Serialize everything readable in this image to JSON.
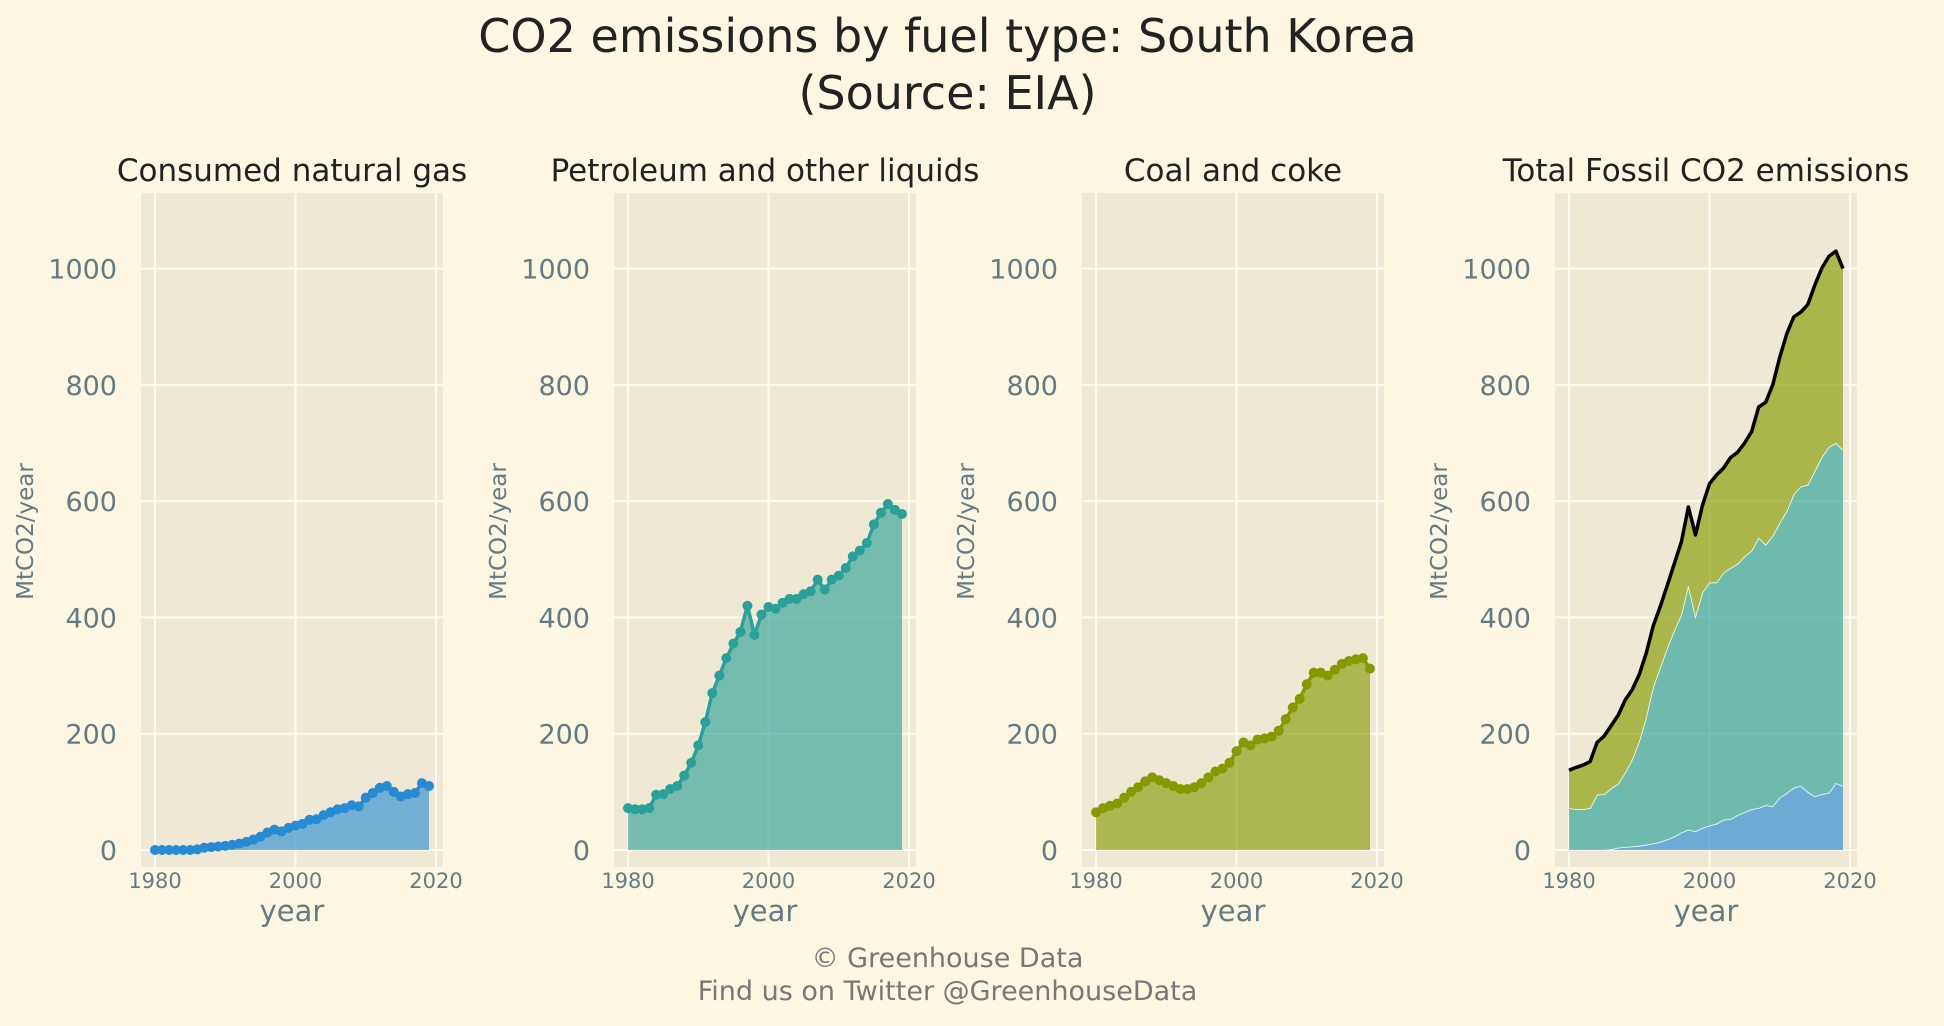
{
  "title_lines": [
    "CO2 emissions by fuel type: South Korea",
    "(Source: EIA)"
  ],
  "footer_lines": [
    "© Greenhouse Data",
    "Find us on Twitter @GreenhouseData"
  ],
  "colors": {
    "background": "#fdf6e3",
    "panel": "#eee8d5",
    "grid": "#fdfaf2",
    "gas": "#268bd2",
    "petroleum": "#2aa198",
    "coal": "#859900",
    "total": "#000000"
  },
  "chart_data": [
    {
      "type": "area",
      "title": "Consumed natural gas",
      "xlabel": "year",
      "ylabel": "MtCO2/year",
      "x_ticks": [
        1980,
        2000,
        2020
      ],
      "y_ticks": [
        0,
        200,
        400,
        600,
        800,
        1000
      ],
      "xlim": [
        1978,
        2021
      ],
      "ylim": [
        0,
        1130
      ],
      "markers": true,
      "series": [
        {
          "key": "gas",
          "x": [
            1980,
            1981,
            1982,
            1983,
            1984,
            1985,
            1986,
            1987,
            1988,
            1989,
            1990,
            1991,
            1992,
            1993,
            1994,
            1995,
            1996,
            1997,
            1998,
            1999,
            2000,
            2001,
            2002,
            2003,
            2004,
            2005,
            2006,
            2007,
            2008,
            2009,
            2010,
            2011,
            2012,
            2013,
            2014,
            2015,
            2016,
            2017,
            2018,
            2019
          ],
          "values": [
            0,
            0,
            0,
            0,
            0,
            0,
            1,
            4,
            5,
            6,
            7,
            9,
            11,
            14,
            18,
            23,
            30,
            35,
            32,
            38,
            42,
            45,
            52,
            53,
            60,
            65,
            70,
            72,
            77,
            75,
            90,
            98,
            107,
            110,
            100,
            92,
            96,
            98,
            115,
            110
          ]
        }
      ]
    },
    {
      "type": "area",
      "title": "Petroleum and other liquids",
      "xlabel": "year",
      "ylabel": "MtCO2/year",
      "x_ticks": [
        1980,
        2000,
        2020
      ],
      "y_ticks": [
        0,
        200,
        400,
        600,
        800,
        1000
      ],
      "xlim": [
        1978,
        2021
      ],
      "ylim": [
        0,
        1130
      ],
      "markers": true,
      "series": [
        {
          "key": "petroleum",
          "x": [
            1980,
            1981,
            1982,
            1983,
            1984,
            1985,
            1986,
            1987,
            1988,
            1989,
            1990,
            1991,
            1992,
            1993,
            1994,
            1995,
            1996,
            1997,
            1998,
            1999,
            2000,
            2001,
            2002,
            2003,
            2004,
            2005,
            2006,
            2007,
            2008,
            2009,
            2010,
            2011,
            2012,
            2013,
            2014,
            2015,
            2016,
            2017,
            2018,
            2019
          ],
          "values": [
            72,
            70,
            70,
            72,
            95,
            96,
            105,
            110,
            128,
            150,
            180,
            220,
            270,
            300,
            330,
            355,
            375,
            420,
            370,
            405,
            418,
            415,
            425,
            432,
            432,
            440,
            445,
            465,
            448,
            465,
            472,
            485,
            505,
            515,
            528,
            560,
            580,
            595,
            585,
            578
          ]
        }
      ]
    },
    {
      "type": "area",
      "title": "Coal and coke",
      "xlabel": "year",
      "ylabel": "MtCO2/year",
      "x_ticks": [
        1980,
        2000,
        2020
      ],
      "y_ticks": [
        0,
        200,
        400,
        600,
        800,
        1000
      ],
      "xlim": [
        1978,
        2021
      ],
      "ylim": [
        0,
        1130
      ],
      "markers": true,
      "series": [
        {
          "key": "coal",
          "x": [
            1980,
            1981,
            1982,
            1983,
            1984,
            1985,
            1986,
            1987,
            1988,
            1989,
            1990,
            1991,
            1992,
            1993,
            1994,
            1995,
            1996,
            1997,
            1998,
            1999,
            2000,
            2001,
            2002,
            2003,
            2004,
            2005,
            2006,
            2007,
            2008,
            2009,
            2010,
            2011,
            2012,
            2013,
            2014,
            2015,
            2016,
            2017,
            2018,
            2019
          ],
          "values": [
            65,
            72,
            76,
            80,
            90,
            100,
            108,
            118,
            125,
            120,
            115,
            110,
            105,
            105,
            108,
            115,
            125,
            135,
            140,
            150,
            170,
            185,
            180,
            190,
            192,
            195,
            205,
            225,
            245,
            260,
            285,
            305,
            305,
            300,
            310,
            320,
            325,
            328,
            330,
            312
          ]
        }
      ]
    },
    {
      "type": "area",
      "stacked": true,
      "title": "Total Fossil CO2 emissions",
      "xlabel": "year",
      "ylabel": "MtCO2/year",
      "x_ticks": [
        1980,
        2000,
        2020
      ],
      "y_ticks": [
        0,
        200,
        400,
        600,
        800,
        1000
      ],
      "xlim": [
        1978,
        2021
      ],
      "ylim": [
        0,
        1130
      ],
      "x": [
        1980,
        1981,
        1982,
        1983,
        1984,
        1985,
        1986,
        1987,
        1988,
        1989,
        1990,
        1991,
        1992,
        1993,
        1994,
        1995,
        1996,
        1997,
        1998,
        1999,
        2000,
        2001,
        2002,
        2003,
        2004,
        2005,
        2006,
        2007,
        2008,
        2009,
        2010,
        2011,
        2012,
        2013,
        2014,
        2015,
        2016,
        2017,
        2018,
        2019
      ],
      "series": [
        {
          "key": "gas",
          "values": [
            0,
            0,
            0,
            0,
            0,
            0,
            1,
            4,
            5,
            6,
            7,
            9,
            11,
            14,
            18,
            23,
            30,
            35,
            32,
            38,
            42,
            45,
            52,
            53,
            60,
            65,
            70,
            72,
            77,
            75,
            90,
            98,
            107,
            110,
            100,
            92,
            96,
            98,
            115,
            110
          ]
        },
        {
          "key": "petroleum",
          "values": [
            72,
            70,
            70,
            72,
            95,
            96,
            105,
            110,
            128,
            150,
            180,
            220,
            270,
            300,
            330,
            355,
            375,
            420,
            370,
            405,
            418,
            415,
            425,
            432,
            432,
            440,
            445,
            465,
            448,
            465,
            472,
            485,
            505,
            515,
            528,
            560,
            580,
            595,
            585,
            578
          ]
        },
        {
          "key": "coal",
          "values": [
            65,
            72,
            76,
            80,
            90,
            100,
            108,
            118,
            125,
            120,
            115,
            110,
            105,
            105,
            108,
            115,
            125,
            135,
            140,
            150,
            170,
            185,
            180,
            190,
            192,
            195,
            205,
            225,
            245,
            260,
            285,
            305,
            305,
            300,
            310,
            320,
            325,
            328,
            330,
            312
          ]
        }
      ],
      "total_line": {
        "key": "total",
        "values": [
          137,
          142,
          146,
          152,
          185,
          196,
          214,
          232,
          258,
          276,
          302,
          339,
          386,
          419,
          456,
          493,
          530,
          590,
          542,
          593,
          630,
          645,
          657,
          675,
          684,
          700,
          720,
          762,
          770,
          800,
          847,
          888,
          917,
          925,
          938,
          972,
          1001,
          1021,
          1030,
          1000
        ]
      }
    }
  ]
}
